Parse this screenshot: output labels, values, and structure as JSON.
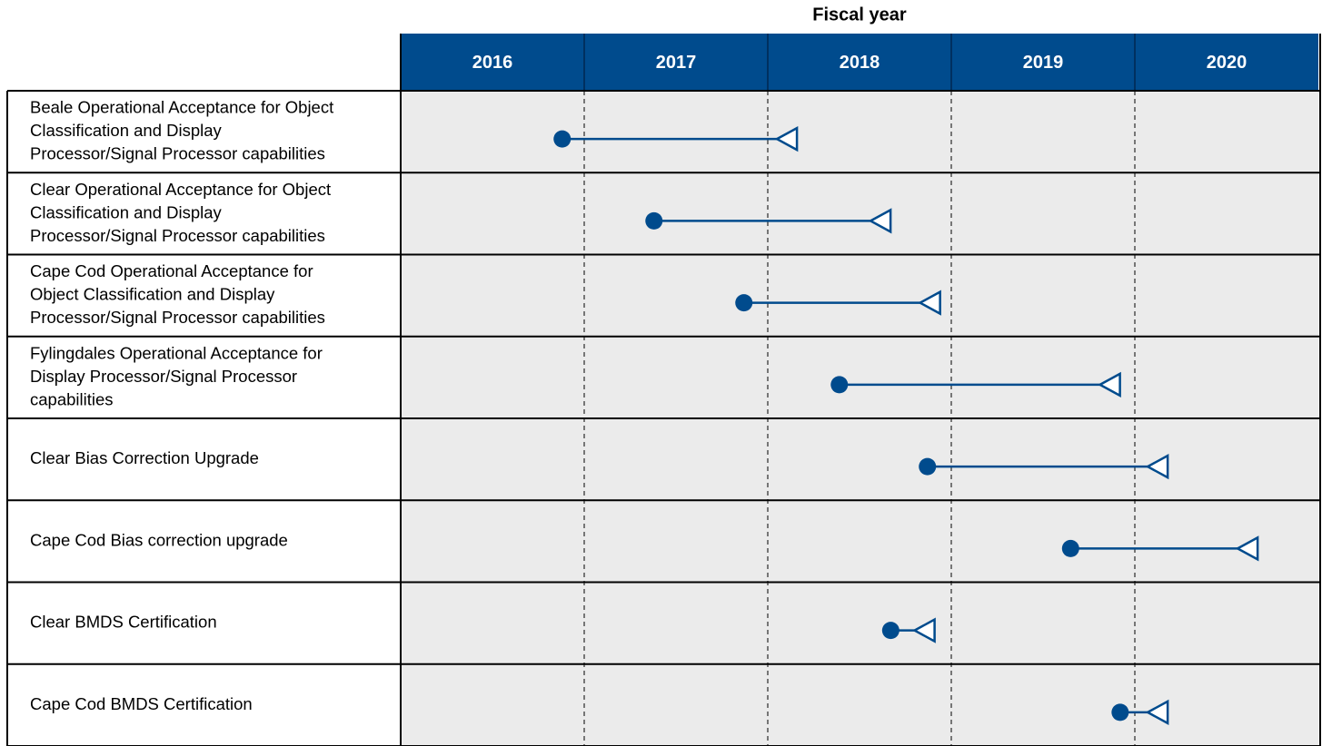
{
  "chart_data": {
    "type": "timeline",
    "title": "Fiscal year",
    "categories": [
      "2016",
      "2017",
      "2018",
      "2019",
      "2020"
    ],
    "xlim": [
      2016,
      2021
    ],
    "xticks": [
      2017,
      2018,
      2019,
      2020
    ],
    "grid": true,
    "color": "#004b8d",
    "rows": [
      [
        "Beale Operational Acceptance for Object",
        "Classification and Display",
        "Processor/Signal Processor capabilities"
      ],
      [
        "Clear Operational Acceptance for Object",
        "Classification and Display",
        "Processor/Signal Processor capabilities"
      ],
      [
        "Cape Cod Operational Acceptance for",
        "Object Classification and Display",
        "Processor/Signal Processor capabilities"
      ],
      [
        "Fylingdales Operational Acceptance for",
        "Display Processor/Signal Processor",
        "capabilities"
      ],
      [
        "Clear Bias Correction Upgrade"
      ],
      [
        "Cape Cod Bias correction upgrade"
      ],
      [
        "Clear BMDS Certification"
      ],
      [
        "Cape Cod BMDS Certification"
      ]
    ],
    "starts": [
      2016.88,
      2017.38,
      2017.87,
      2018.39,
      2018.87,
      2019.65,
      2018.67,
      2019.92
    ],
    "ends": [
      2018.05,
      2018.56,
      2018.83,
      2019.81,
      2020.07,
      2020.56,
      2018.8,
      2020.07
    ]
  }
}
